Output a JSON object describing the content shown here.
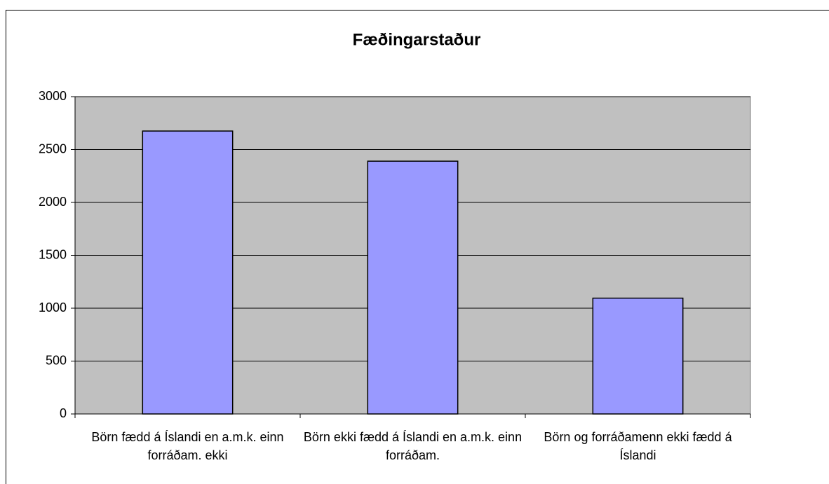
{
  "chart_data": {
    "type": "bar",
    "title": "Fæðingarstaður",
    "categories": [
      "Börn fædd á Íslandi en a.m.k. einn forráðam. ekki",
      "Börn ekki fædd á Íslandi en a.m.k. einn forráðam.",
      "Börn og forráðamenn ekki fædd á Íslandi"
    ],
    "values": [
      2675,
      2390,
      1095
    ],
    "color": "#9999ff",
    "ylim": [
      0,
      3000
    ],
    "yticks": [
      0,
      500,
      1000,
      1500,
      2000,
      2500,
      3000
    ],
    "grid": true
  }
}
